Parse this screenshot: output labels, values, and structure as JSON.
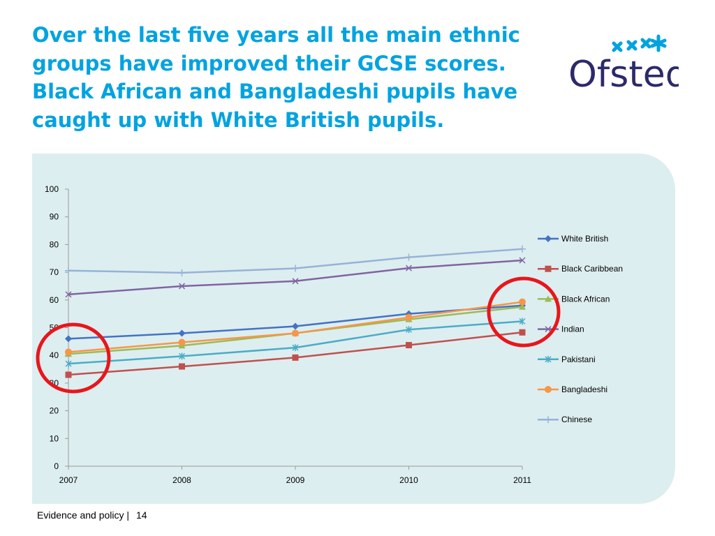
{
  "slide": {
    "title": "Over the last five years all the main ethnic groups have improved their GCSE scores. Black African and Bangladeshi pupils have caught up with White British pupils.",
    "logo_text": "Ofsted",
    "footer_text": "Evidence and policy |",
    "page_number": "14"
  },
  "colors": {
    "title": "#00a3e0",
    "panel": "#ddeef0",
    "highlight_circle": "#e8161b",
    "logo_text": "#2b2a6a",
    "logo_stars": "#00a3e0"
  },
  "chart_data": {
    "type": "line",
    "title": "",
    "xlabel": "",
    "ylabel": "",
    "x": [
      "2007",
      "2008",
      "2009",
      "2010",
      "2011"
    ],
    "ylim": [
      0,
      100
    ],
    "yticks": [
      0,
      10,
      20,
      30,
      40,
      50,
      60,
      70,
      80,
      90,
      100
    ],
    "grid": false,
    "legend": "right",
    "series": [
      {
        "name": "White British",
        "color": "#4472c4",
        "marker": "diamond",
        "values": [
          46,
          48,
          50.5,
          55,
          58
        ]
      },
      {
        "name": "Black Caribbean",
        "color": "#c0504d",
        "marker": "square",
        "values": [
          33,
          36,
          39.2,
          43.7,
          48.3
        ]
      },
      {
        "name": "Black African",
        "color": "#9bbb59",
        "marker": "triangle",
        "values": [
          40.5,
          43.5,
          48,
          53,
          57.5
        ]
      },
      {
        "name": "Indian",
        "color": "#8064a2",
        "marker": "x",
        "values": [
          62,
          65,
          66.8,
          71.5,
          74.3
        ]
      },
      {
        "name": "Pakistani",
        "color": "#4bacc6",
        "marker": "star",
        "values": [
          37,
          39.7,
          42.8,
          49.3,
          52.3
        ]
      },
      {
        "name": "Bangladeshi",
        "color": "#f79646",
        "marker": "circle",
        "values": [
          41.2,
          44.7,
          48,
          53.7,
          59.3
        ]
      },
      {
        "name": "Chinese",
        "color": "#95b3d7",
        "marker": "plus",
        "values": [
          70.6,
          69.8,
          71.4,
          75.4,
          78.4
        ]
      }
    ]
  }
}
